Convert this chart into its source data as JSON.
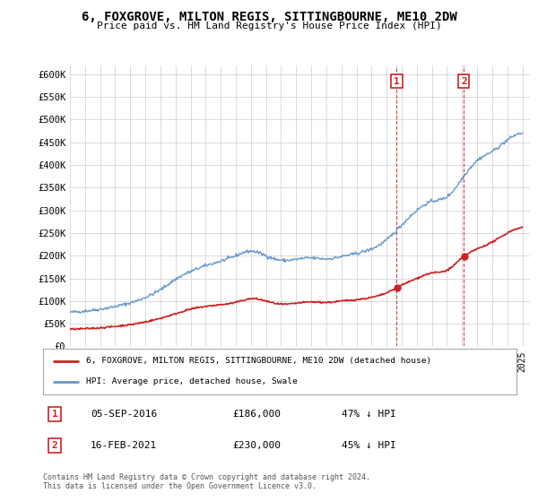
{
  "title": "6, FOXGROVE, MILTON REGIS, SITTINGBOURNE, ME10 2DW",
  "subtitle": "Price paid vs. HM Land Registry's House Price Index (HPI)",
  "ylabel_ticks": [
    0,
    50000,
    100000,
    150000,
    200000,
    250000,
    300000,
    350000,
    400000,
    450000,
    500000,
    550000,
    600000
  ],
  "ylabel_labels": [
    "£0",
    "£50K",
    "£100K",
    "£150K",
    "£200K",
    "£250K",
    "£300K",
    "£350K",
    "£400K",
    "£450K",
    "£500K",
    "£550K",
    "£600K"
  ],
  "xlim_start": 1995.0,
  "xlim_end": 2025.5,
  "ylim_min": 0,
  "ylim_max": 620000,
  "hpi_color": "#6699cc",
  "property_color": "#cc2222",
  "marker1_date": 2016.67,
  "marker1_price": 186000,
  "marker1_label": "05-SEP-2016",
  "marker1_amount": "£186,000",
  "marker1_pct": "47% ↓ HPI",
  "marker2_date": 2021.12,
  "marker2_price": 230000,
  "marker2_label": "16-FEB-2021",
  "marker2_amount": "£230,000",
  "marker2_pct": "45% ↓ HPI",
  "legend_line1": "6, FOXGROVE, MILTON REGIS, SITTINGBOURNE, ME10 2DW (detached house)",
  "legend_line2": "HPI: Average price, detached house, Swale",
  "footer": "Contains HM Land Registry data © Crown copyright and database right 2024.\nThis data is licensed under the Open Government Licence v3.0.",
  "background_color": "#ffffff",
  "grid_color": "#cccccc"
}
